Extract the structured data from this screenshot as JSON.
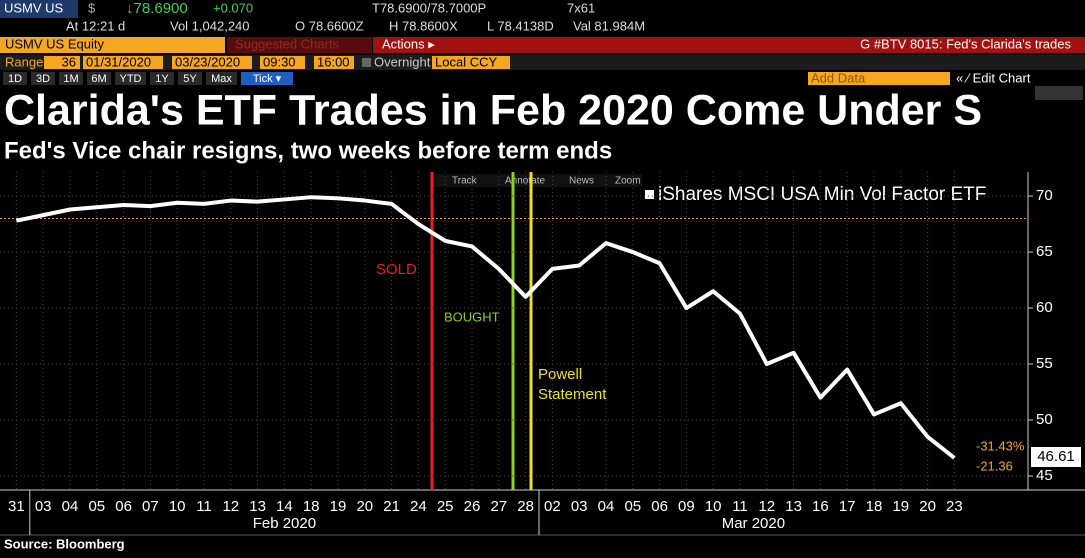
{
  "header": {
    "ticker": "USMV US",
    "currency": "$",
    "last": "↓78.6900",
    "change": "+0.070",
    "bid_ask": "T78.6900/78.7000P",
    "size": "7x61",
    "time": "At 12:21 d",
    "volume": "Vol 1,042,240",
    "open": "O 78.6600Z",
    "high": "H 78.8600X",
    "low": "L 78.4138D",
    "value": "Val 81.984M",
    "security": "USMV US Equity",
    "suggested": "Suggested Charts",
    "actions": "Actions ▸",
    "news": "G #BTV 8015: Fed's Clarida's trades",
    "range_label": "Range",
    "range_days": "36",
    "start_date": "01/31/2020",
    "end_date": "03/23/2020",
    "start_time": "09:30",
    "end_time": "16:00",
    "overnight": "Overnight",
    "currency_mode": "Local CCY",
    "periods": [
      "1D",
      "3D",
      "1M",
      "6M",
      "YTD",
      "1Y",
      "5Y",
      "Max",
      "Tick ▾"
    ],
    "add_data": "Add Data",
    "edit_chart": "« ⁄ Edit Chart",
    "tools": [
      "Track",
      "Annotate",
      "News",
      "Zoom"
    ]
  },
  "chart_data": {
    "type": "line",
    "title": "Clarida's ETF Trades in Feb 2020 Come Under S",
    "subtitle": "Fed's Vice chair resigns, two weeks before term ends",
    "source": "Source: Bloomberg",
    "categories": [
      "31",
      "03",
      "04",
      "05",
      "06",
      "07",
      "10",
      "11",
      "12",
      "13",
      "14",
      "18",
      "19",
      "20",
      "21",
      "24",
      "25",
      "26",
      "27",
      "28",
      "02",
      "03",
      "04",
      "05",
      "06",
      "09",
      "10",
      "11",
      "12",
      "13",
      "16",
      "17",
      "18",
      "19",
      "20",
      "23"
    ],
    "months": [
      "Feb 2020",
      "Mar 2020"
    ],
    "series": [
      {
        "name": "iShares MSCI USA Min Vol Factor ETF",
        "color": "#ffffff",
        "values": [
          67.8,
          68.3,
          68.8,
          69.0,
          69.2,
          69.1,
          69.4,
          69.3,
          69.6,
          69.5,
          69.7,
          69.9,
          69.8,
          69.6,
          69.3,
          67.5,
          66.0,
          65.5,
          63.5,
          61.0,
          63.5,
          63.8,
          65.8,
          65.0,
          64.0,
          60.0,
          61.5,
          59.5,
          55.0,
          56.0,
          52.0,
          54.5,
          50.5,
          51.5,
          48.5,
          46.61
        ]
      }
    ],
    "reference_value": 68.0,
    "annotations": {
      "sold": "SOLD",
      "bought": "BOUGHT",
      "powell": "Powell\nStatement"
    },
    "last_value_label": "46.61",
    "pct_change_label": "-31.43%",
    "abs_change_label": "-21.36",
    "ylim": [
      43.75,
      72.15
    ],
    "yticks": [
      45,
      50,
      55,
      60,
      65,
      70
    ],
    "grid": true
  }
}
